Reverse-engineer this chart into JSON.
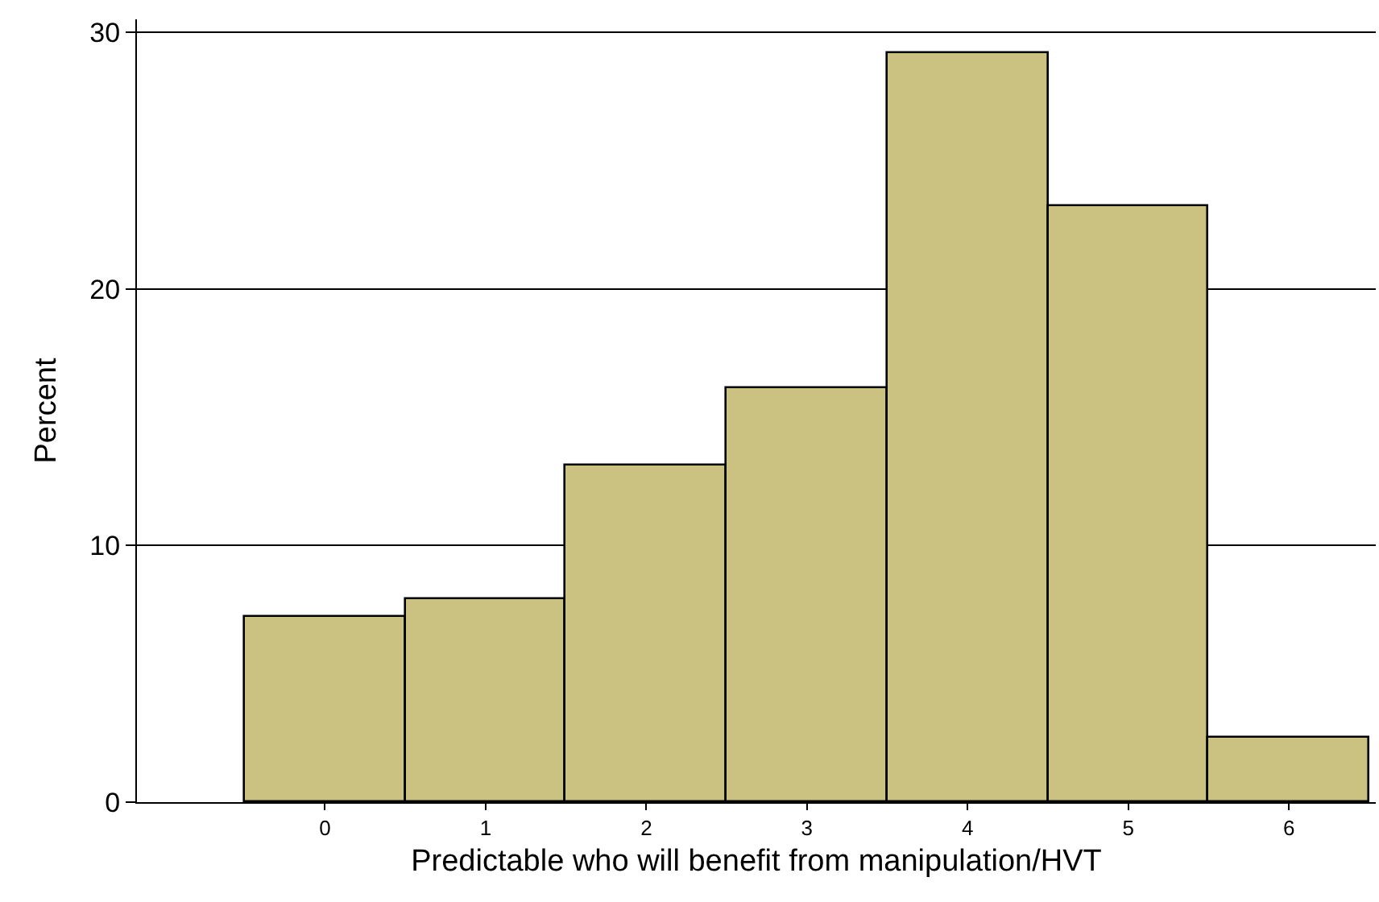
{
  "chart_data": {
    "type": "histogram",
    "xlabel": "Predictable who will benefit from manipulation/HVT",
    "ylabel": "Percent",
    "bins": [
      -0.5,
      0.5,
      1.5,
      2.5,
      3.5,
      4.5,
      5.5,
      6.5
    ],
    "values": [
      7.2,
      7.9,
      13.1,
      16.1,
      29.2,
      23.2,
      2.5
    ],
    "color": "#cbc282",
    "xlim": [
      -1.17,
      6.54
    ],
    "xticks": [
      0,
      1,
      2,
      3,
      4,
      5,
      6
    ],
    "ylim": [
      0,
      30.5
    ],
    "yticks": [
      0,
      10,
      20,
      30
    ],
    "grid": "y"
  }
}
